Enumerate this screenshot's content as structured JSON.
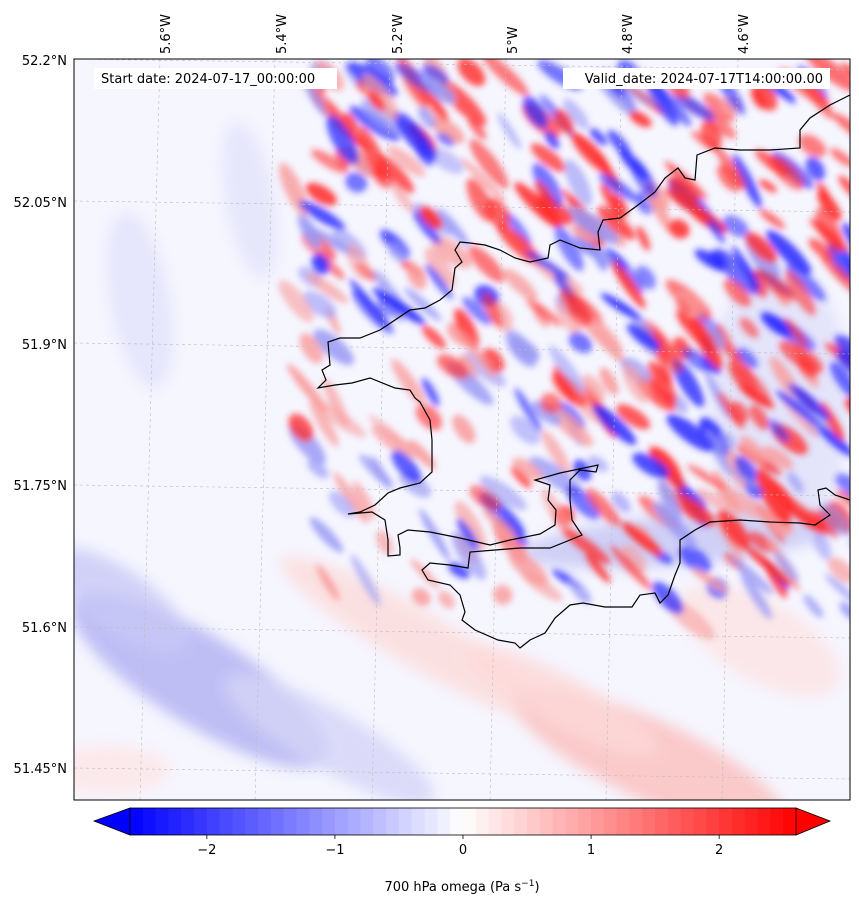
{
  "header": {
    "start_date": "Start date: 2024-07-17_00:00:00",
    "valid_date": "Valid_date: 2024-07-17T14:00:00.00"
  },
  "map": {
    "lon_ticks": [
      "5.6°W",
      "5.4°W",
      "5.2°W",
      "5°W",
      "4.8°W",
      "4.6°W"
    ],
    "lat_ticks": [
      "52.2°N",
      "52.05°N",
      "51.9°N",
      "51.75°N",
      "51.6°N",
      "51.45°N"
    ],
    "colors": {
      "negative": "#0000ff",
      "neutral": "#ffffff",
      "positive": "#ff0000",
      "coast": "#000000",
      "grid": "#b0b0b0"
    }
  },
  "colorbar": {
    "ticks": [
      "−2",
      "−1",
      "0",
      "1",
      "2"
    ],
    "tick_values": [
      -2,
      -1,
      0,
      1,
      2
    ],
    "range": [
      -2.6,
      2.6
    ],
    "label_main": "700 hPa omega (Pa s",
    "label_sup": "−1",
    "label_end": ")"
  }
}
